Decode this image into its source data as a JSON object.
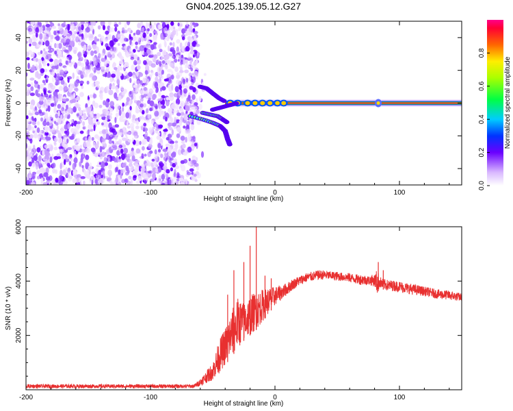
{
  "title": "GN04.2025.139.05.12.G27",
  "chart_data": [
    {
      "type": "heatmap",
      "xlabel": "Height of straight line (km)",
      "ylabel": "Frequency (Hz)",
      "xlim": [
        -200,
        150
      ],
      "ylim": [
        -50,
        50
      ],
      "xticks": [
        -200,
        -100,
        0,
        100
      ],
      "yticks": [
        -40,
        -20,
        0,
        20,
        40
      ],
      "colorbar": {
        "label": "Normalized spectral amplitude",
        "range": [
          0,
          1
        ],
        "ticks": [
          0.0,
          0.2,
          0.4,
          0.6,
          0.8
        ]
      },
      "features": {
        "noise_region_x": [
          -200,
          -62
        ],
        "carrier_line": {
          "frequency": 0,
          "x_start": -40,
          "x_end": 150
        },
        "converging_traces": [
          {
            "x": [
              -68,
              -58,
              -50,
              -44,
              -40,
              -38,
              -36
            ],
            "y": [
              -8,
              -10,
              -12,
              -14,
              -17,
              -22,
              -26
            ]
          },
          {
            "x": [
              -58,
              -52,
              -46,
              -42,
              -38
            ],
            "y": [
              -6,
              -7,
              -8,
              -10,
              -12
            ]
          },
          {
            "x": [
              -60,
              -55,
              -50,
              -45,
              -40
            ],
            "y": [
              10,
              9,
              6,
              3,
              1
            ]
          },
          {
            "x": [
              -50,
              -45,
              -40,
              -35,
              -30
            ],
            "y": [
              -4,
              -3,
              -2,
              -1,
              0
            ]
          }
        ]
      }
    },
    {
      "type": "line",
      "xlabel": "Height of straight line (km)",
      "ylabel": "SNR (10 * v/v)",
      "xlim": [
        -200,
        150
      ],
      "ylim": [
        0,
        6000
      ],
      "xticks": [
        -200,
        -100,
        0,
        100
      ],
      "yticks": [
        2000,
        4000,
        6000
      ],
      "series_color": "#e83030",
      "envelope": {
        "x": [
          -200,
          -65,
          -60,
          -55,
          -50,
          -45,
          -40,
          -35,
          -30,
          -25,
          -20,
          -15,
          -10,
          -5,
          0,
          5,
          10,
          15,
          20,
          25,
          30,
          35,
          40,
          45,
          50,
          55,
          60,
          65,
          70,
          75,
          80,
          82,
          84,
          86,
          90,
          100,
          110,
          120,
          130,
          140,
          150
        ],
        "low": [
          60,
          60,
          150,
          250,
          350,
          600,
          900,
          1200,
          1500,
          1800,
          2000,
          2200,
          2500,
          2800,
          3100,
          3300,
          3500,
          3700,
          3850,
          3950,
          4000,
          4050,
          4050,
          4050,
          4000,
          4000,
          3950,
          3900,
          3850,
          3850,
          3800,
          3500,
          3750,
          3700,
          3650,
          3600,
          3500,
          3450,
          3350,
          3300,
          3250
        ],
        "high": [
          200,
          200,
          400,
          700,
          1000,
          1800,
          2300,
          2900,
          3400,
          3200,
          3500,
          3600,
          3700,
          3750,
          3800,
          3850,
          3950,
          4100,
          4200,
          4300,
          4350,
          4400,
          4400,
          4350,
          4350,
          4300,
          4300,
          4250,
          4250,
          4200,
          4250,
          4450,
          4200,
          4100,
          4050,
          4000,
          3900,
          3800,
          3700,
          3650,
          3550
        ]
      },
      "spikes": [
        {
          "x": -38,
          "y": 3500
        },
        {
          "x": -33,
          "y": 4400
        },
        {
          "x": -25,
          "y": 4700
        },
        {
          "x": -20,
          "y": 5300
        },
        {
          "x": -15,
          "y": 6000
        },
        {
          "x": -8,
          "y": 4200
        },
        {
          "x": -3,
          "y": 4100
        },
        {
          "x": 83,
          "y": 4700
        },
        {
          "x": 87,
          "y": 4400
        }
      ]
    }
  ]
}
